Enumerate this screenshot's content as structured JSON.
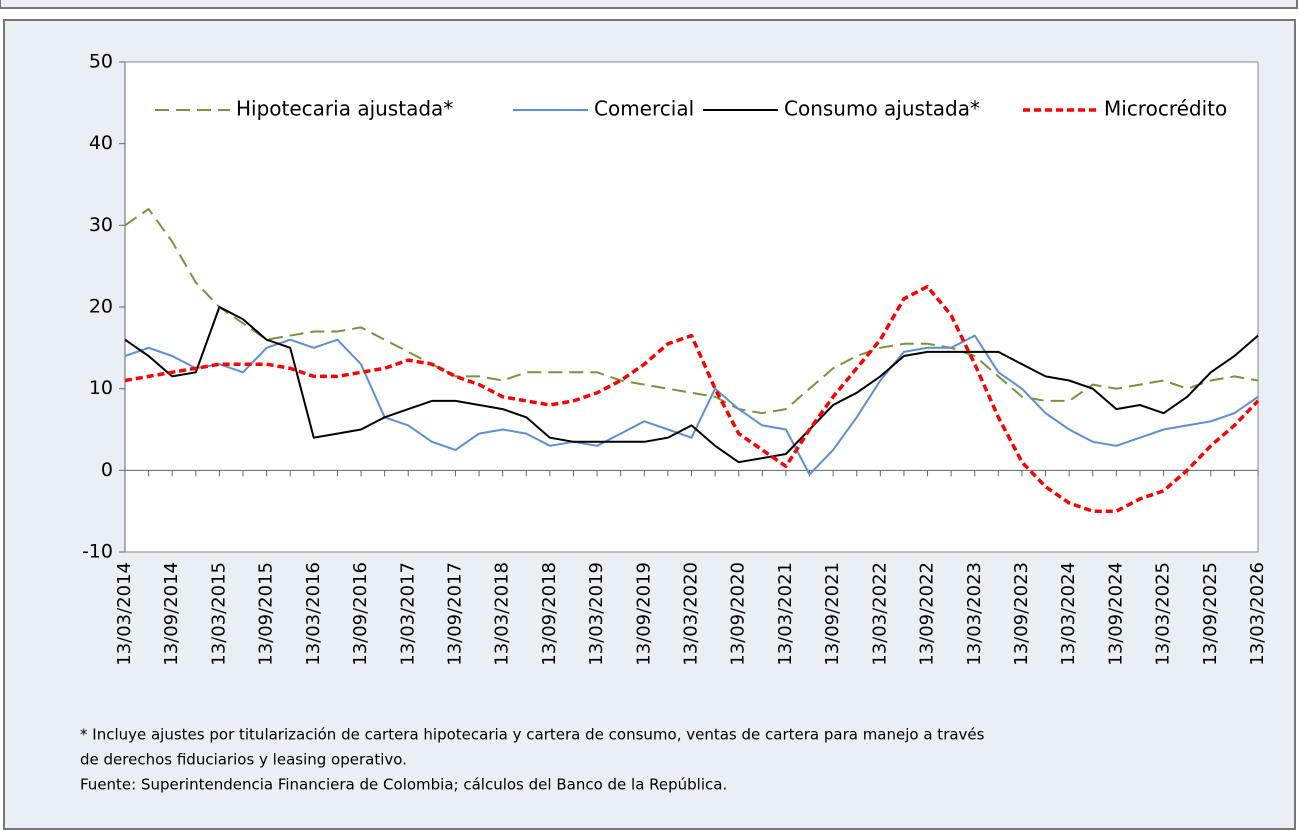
{
  "chart_data": {
    "type": "line",
    "categories": [
      "13/03/2014",
      null,
      "13/09/2014",
      null,
      "13/03/2015",
      null,
      "13/09/2015",
      null,
      "13/03/2016",
      null,
      "13/09/2016",
      null,
      "13/03/2017",
      null,
      "13/09/2017",
      null,
      "13/03/2018",
      null,
      "13/09/2018",
      null,
      "13/03/2019",
      null,
      "13/09/2019",
      null,
      "13/03/2020",
      null,
      "13/09/2020",
      null,
      "13/03/2021",
      null,
      "13/09/2021",
      null,
      "13/03/2022",
      null,
      "13/09/2022",
      null,
      "13/03/2023",
      null,
      "13/09/2023",
      null,
      "13/03/2024",
      null,
      "13/09/2024",
      null,
      "13/03/2025",
      null,
      "13/09/2025",
      null,
      "13/03/2026"
    ],
    "series": [
      {
        "name": "Hipotecaria ajustada*",
        "color": "#77933c",
        "line_style": "long-dash",
        "values": [
          30,
          32,
          28,
          23,
          20,
          18,
          16,
          16.5,
          17,
          17,
          17.5,
          16,
          14.5,
          13,
          11.5,
          11.5,
          11,
          12,
          12,
          12,
          12,
          11,
          10.5,
          10,
          9.5,
          9,
          7.5,
          7,
          7.5,
          10,
          12.5,
          14,
          15,
          15.5,
          15.5,
          15,
          14,
          11.5,
          9,
          8.5,
          8.5,
          10.5,
          10,
          10.5,
          11,
          10,
          11,
          11.5,
          11
        ]
      },
      {
        "name": "Comercial",
        "color": "#5b8fd6",
        "line_style": "solid",
        "values": [
          14,
          15,
          14,
          12.5,
          13,
          12,
          15,
          16,
          15,
          16,
          13,
          6.5,
          5.5,
          3.5,
          2.5,
          4.5,
          5,
          4.5,
          3,
          3.5,
          3,
          4.5,
          6,
          5,
          4,
          10,
          7.5,
          5.5,
          5,
          -0.5,
          2.5,
          6.5,
          11,
          14.5,
          15,
          15,
          16.5,
          12,
          10,
          7,
          5,
          3.5,
          3,
          4,
          5,
          5.5,
          6,
          7,
          9
        ]
      },
      {
        "name": "Consumo ajustada*",
        "color": "#000000",
        "line_style": "solid",
        "values": [
          16,
          14,
          11.5,
          12,
          20,
          18.5,
          16,
          15,
          4,
          4.5,
          5,
          6.5,
          7.5,
          8.5,
          8.5,
          8,
          7.5,
          6.5,
          4,
          3.5,
          3.5,
          3.5,
          3.5,
          4,
          5.5,
          3,
          1,
          1.5,
          2,
          5,
          8,
          9.5,
          11.5,
          14,
          14.5,
          14.5,
          14.5,
          14.5,
          13,
          11.5,
          11,
          10,
          7.5,
          8,
          7,
          9,
          12,
          14,
          16.5
        ]
      },
      {
        "name": "Microcrédito",
        "color": "#ff0000",
        "line_style": "short-dash",
        "values": [
          11,
          11.5,
          12,
          12.5,
          13,
          13,
          13,
          12.5,
          11.5,
          11.5,
          12,
          12.5,
          13.5,
          13,
          11.5,
          10.5,
          9,
          8.5,
          8,
          8.5,
          9.5,
          11,
          13,
          15.5,
          16.5,
          10,
          4.5,
          2.5,
          0.5,
          5,
          9,
          12.5,
          16,
          21,
          22.5,
          19,
          13,
          6.5,
          1,
          -2,
          -4,
          -5,
          -5,
          -3.5,
          -2.5,
          0,
          3,
          5.5,
          8.5
        ]
      }
    ],
    "ylim": [
      -10,
      50
    ],
    "yticks": [
      -10,
      0,
      10,
      20,
      30,
      40,
      50
    ],
    "legend": "top",
    "notes": [
      "* Incluye ajustes por titularización de cartera hipotecaria y cartera de consumo, ventas de cartera para manejo a través",
      "de derechos fiduciarios y leasing operativo.",
      "Fuente: Superintendencia Financiera de Colombia; cálculos del Banco de la República."
    ]
  }
}
